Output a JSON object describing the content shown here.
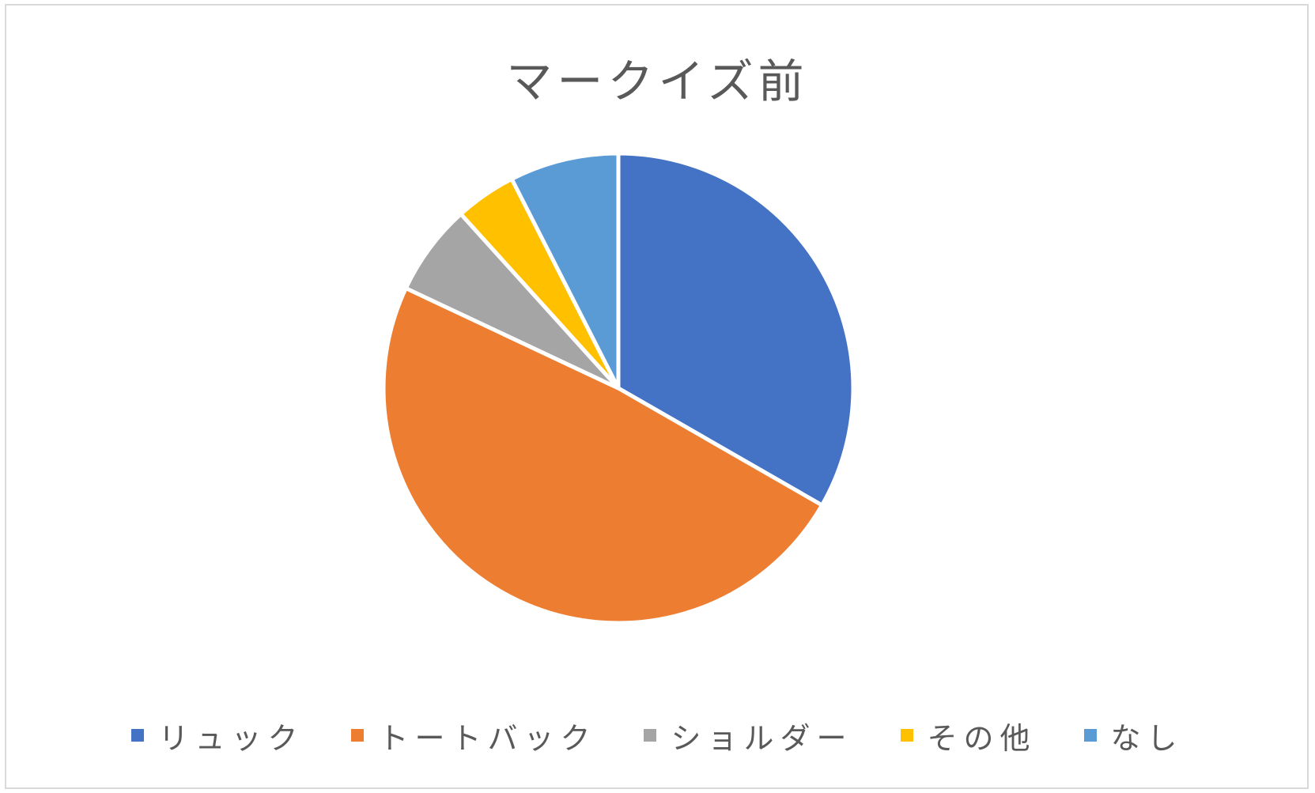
{
  "chart_data": {
    "type": "pie",
    "title": "マークイズ前",
    "legend_position": "bottom",
    "categories": [
      "リュック",
      "トートバック",
      "ショルダー",
      "その他",
      "なし"
    ],
    "values": [
      33.3,
      48.7,
      6.3,
      4.2,
      7.5
    ],
    "colors": [
      "#4472c4",
      "#ed7d31",
      "#a5a5a5",
      "#ffc000",
      "#5b9bd5"
    ]
  }
}
